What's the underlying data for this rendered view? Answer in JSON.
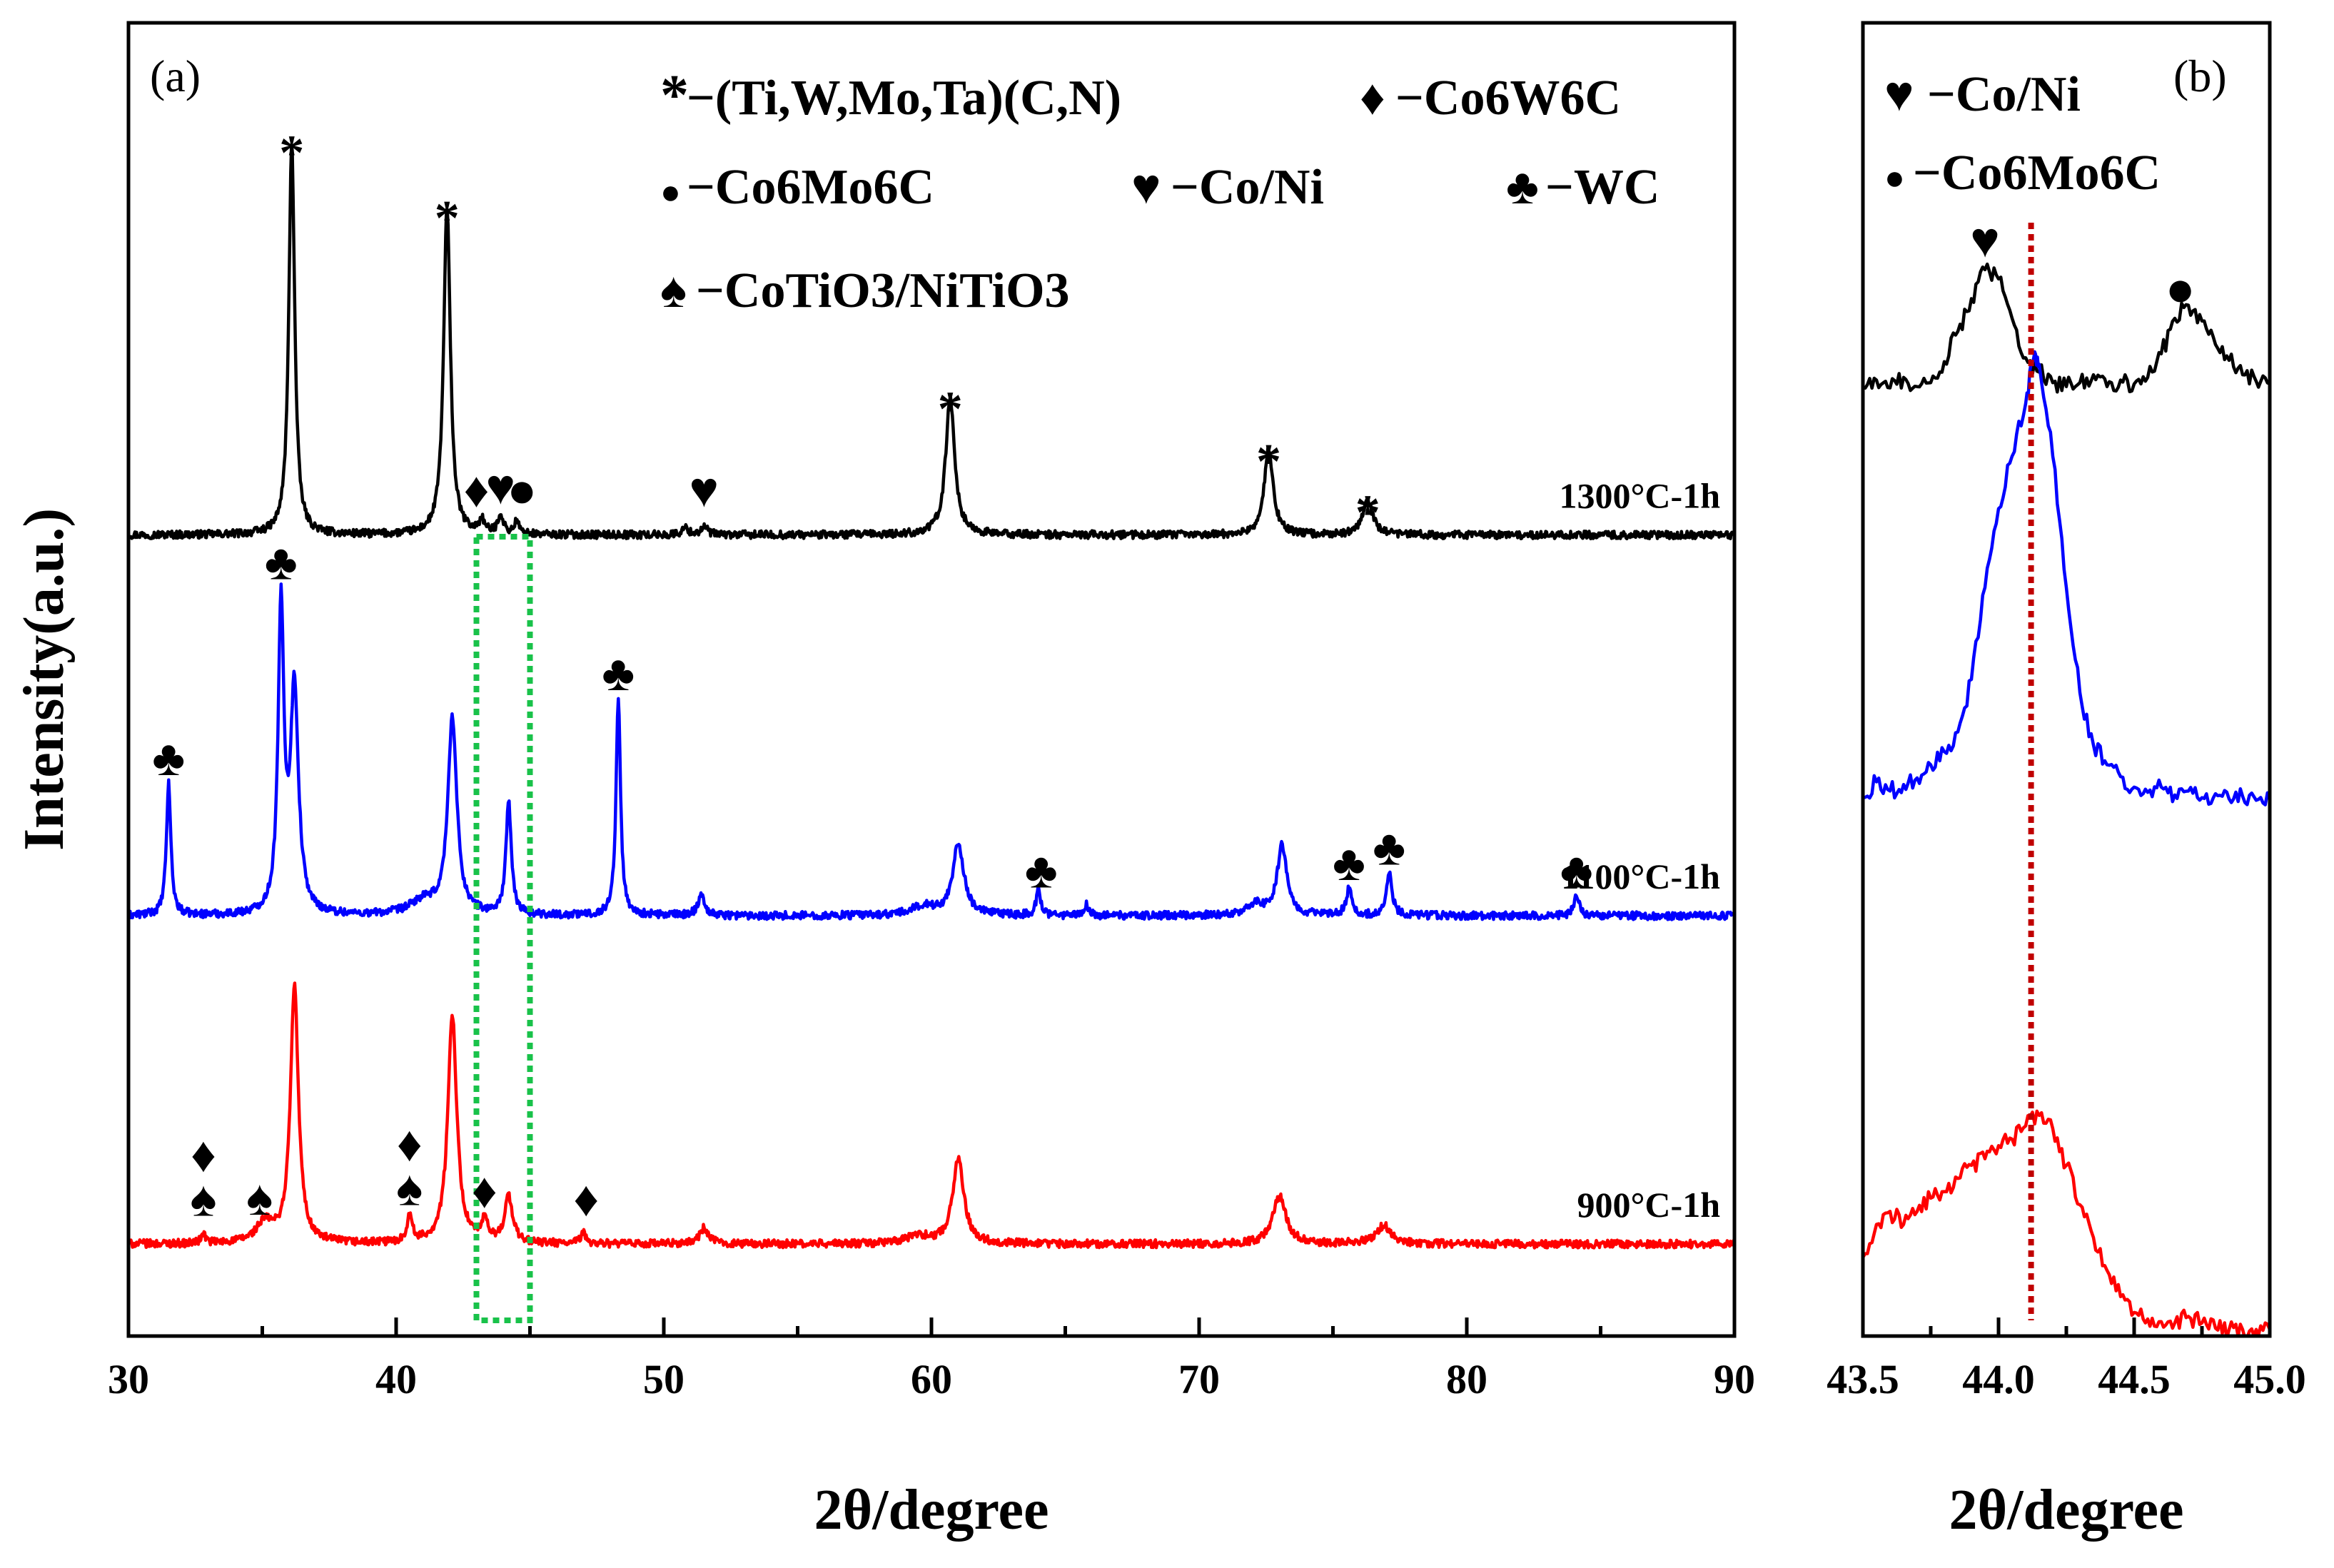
{
  "colors": {
    "s1300": "#000000",
    "s1100": "#0000ff",
    "s900": "#ff0000",
    "box": "#19c24a",
    "refline": "#c00000"
  },
  "chart_data": [
    {
      "type": "line",
      "panel_label": "(a)",
      "xlabel": "2θ/degree",
      "ylabel": "Intensity(a.u.)",
      "xlim": [
        30,
        90
      ],
      "xticks": [
        30,
        40,
        50,
        60,
        70,
        80,
        90
      ],
      "ylim": [
        0,
        100
      ],
      "yticks": "none",
      "legend": [
        {
          "symbol": "*",
          "symbol_name": "asterisk",
          "text": "−(Ti,W,Mo,Ta)(C,N)"
        },
        {
          "symbol": "♦",
          "symbol_name": "diamond",
          "text": "−Co6W6C"
        },
        {
          "symbol": "●",
          "symbol_name": "circle",
          "text": "−Co6Mo6C"
        },
        {
          "symbol": "♥",
          "symbol_name": "heart",
          "text": "−Co/Ni"
        },
        {
          "symbol": "♣",
          "symbol_name": "club",
          "text": "−WC"
        },
        {
          "symbol": "♠",
          "symbol_name": "spade",
          "text": "−CoTiO3/NiTiO3"
        }
      ],
      "highlight_region": {
        "x_range": [
          43,
          45
        ],
        "style": "green dotted box"
      },
      "series": [
        {
          "name": "1300°C-1h",
          "color_key": "s1300",
          "baseline": 61,
          "noise": 0.6,
          "peaks": [
            {
              "pos": 36.1,
              "height": 30,
              "width": 0.13
            },
            {
              "pos": 41.9,
              "height": 25,
              "width": 0.15
            },
            {
              "pos": 43.2,
              "height": 1.0,
              "width": 0.12
            },
            {
              "pos": 43.9,
              "height": 1.5,
              "width": 0.12
            },
            {
              "pos": 44.5,
              "height": 1.0,
              "width": 0.1
            },
            {
              "pos": 50.8,
              "height": 0.5,
              "width": 0.15
            },
            {
              "pos": 51.5,
              "height": 0.6,
              "width": 0.15
            },
            {
              "pos": 60.7,
              "height": 10.5,
              "width": 0.2
            },
            {
              "pos": 72.6,
              "height": 6.5,
              "width": 0.2
            },
            {
              "pos": 76.3,
              "height": 2.6,
              "width": 0.22
            }
          ],
          "annotations": [
            {
              "symbol": "*",
              "x": 36.1
            },
            {
              "symbol": "*",
              "x": 41.9
            },
            {
              "symbol": "♦",
              "x": 43.0
            },
            {
              "symbol": "♥",
              "x": 43.9
            },
            {
              "symbol": "●",
              "x": 44.7
            },
            {
              "symbol": "♥",
              "x": 51.5
            },
            {
              "symbol": "*",
              "x": 60.7
            },
            {
              "symbol": "*",
              "x": 72.6
            },
            {
              "symbol": "*",
              "x": 76.3
            }
          ]
        },
        {
          "name": "1100°C-1h",
          "color_key": "s1100",
          "baseline": 32,
          "noise": 0.6,
          "peaks": [
            {
              "pos": 31.5,
              "height": 10,
              "width": 0.1
            },
            {
              "pos": 35.7,
              "height": 23,
              "width": 0.13
            },
            {
              "pos": 36.2,
              "height": 17,
              "width": 0.18
            },
            {
              "pos": 42.1,
              "height": 15,
              "width": 0.2
            },
            {
              "pos": 41.0,
              "height": 1.0,
              "width": 0.6
            },
            {
              "pos": 44.2,
              "height": 8.5,
              "width": 0.12
            },
            {
              "pos": 48.3,
              "height": 16.5,
              "width": 0.1
            },
            {
              "pos": 51.4,
              "height": 1.6,
              "width": 0.15
            },
            {
              "pos": 61.0,
              "height": 5.5,
              "width": 0.25
            },
            {
              "pos": 59.7,
              "height": 0.7,
              "width": 0.5
            },
            {
              "pos": 64.0,
              "height": 2.0,
              "width": 0.1
            },
            {
              "pos": 65.8,
              "height": 0.8,
              "width": 0.1
            },
            {
              "pos": 73.1,
              "height": 5.3,
              "width": 0.22
            },
            {
              "pos": 72.1,
              "height": 0.8,
              "width": 0.4
            },
            {
              "pos": 75.6,
              "height": 2.0,
              "width": 0.13
            },
            {
              "pos": 77.1,
              "height": 3.2,
              "width": 0.13
            },
            {
              "pos": 84.1,
              "height": 1.5,
              "width": 0.12
            }
          ],
          "annotations": [
            {
              "symbol": "♣",
              "x": 31.5
            },
            {
              "symbol": "♣",
              "x": 35.7
            },
            {
              "symbol": "♣",
              "x": 48.3
            },
            {
              "symbol": "♣",
              "x": 64.1
            },
            {
              "symbol": "♣",
              "x": 75.6
            },
            {
              "symbol": "♣",
              "x": 77.1
            },
            {
              "symbol": "♣",
              "x": 84.1
            }
          ]
        },
        {
          "name": "900°C-1h",
          "color_key": "s900",
          "baseline": 7,
          "noise": 0.6,
          "peaks": [
            {
              "pos": 32.8,
              "height": 0.7,
              "width": 0.1
            },
            {
              "pos": 35.1,
              "height": 1.5,
              "width": 0.4
            },
            {
              "pos": 36.2,
              "height": 19.5,
              "width": 0.18
            },
            {
              "pos": 40.5,
              "height": 2.0,
              "width": 0.12
            },
            {
              "pos": 42.1,
              "height": 17.5,
              "width": 0.2
            },
            {
              "pos": 43.3,
              "height": 1.5,
              "width": 0.15
            },
            {
              "pos": 44.2,
              "height": 3.5,
              "width": 0.18
            },
            {
              "pos": 47.0,
              "height": 0.8,
              "width": 0.12
            },
            {
              "pos": 51.5,
              "height": 1.2,
              "width": 0.2
            },
            {
              "pos": 61.0,
              "height": 6.5,
              "width": 0.25
            },
            {
              "pos": 59.5,
              "height": 0.6,
              "width": 0.5
            },
            {
              "pos": 73.0,
              "height": 3.6,
              "width": 0.3
            },
            {
              "pos": 76.9,
              "height": 1.4,
              "width": 0.35
            }
          ],
          "annotations": [
            {
              "symbol": "♠",
              "x": 32.8
            },
            {
              "symbol": "♦",
              "x": 32.8
            },
            {
              "symbol": "♠",
              "x": 34.9
            },
            {
              "symbol": "♠",
              "x": 40.5
            },
            {
              "symbol": "♦",
              "x": 40.5
            },
            {
              "symbol": "♦",
              "x": 43.3
            },
            {
              "symbol": "♦",
              "x": 47.1
            }
          ]
        }
      ]
    },
    {
      "type": "line",
      "panel_label": "(b)",
      "xlabel": "2θ/degree",
      "xlim": [
        43.5,
        45.0
      ],
      "xticks": [
        "43.5",
        "44.0",
        "44.5",
        "45.0"
      ],
      "ylim": [
        0,
        100
      ],
      "yticks": "none",
      "legend": [
        {
          "symbol": "♥",
          "symbol_name": "heart",
          "text": "−Co/Ni"
        },
        {
          "symbol": "●",
          "symbol_name": "circle",
          "text": "−Co6Mo6C"
        }
      ],
      "reference_line": {
        "x": 44.12,
        "style": "dark red dotted vertical"
      },
      "series": [
        {
          "name": "1300°C-1h",
          "color_key": "s1300",
          "points": [
            [
              43.5,
              72.3
            ],
            [
              43.55,
              72.8
            ],
            [
              43.6,
              72.2
            ],
            [
              43.65,
              73.0
            ],
            [
              43.7,
              72.3
            ],
            [
              43.75,
              72.6
            ],
            [
              43.8,
              74.2
            ],
            [
              43.85,
              76.5
            ],
            [
              43.9,
              79.0
            ],
            [
              43.95,
              81.2
            ],
            [
              44.0,
              80.5
            ],
            [
              44.05,
              77.5
            ],
            [
              44.1,
              74.5
            ],
            [
              44.15,
              73.4
            ],
            [
              44.2,
              72.6
            ],
            [
              44.25,
              72.3
            ],
            [
              44.3,
              72.6
            ],
            [
              44.35,
              73.2
            ],
            [
              44.4,
              72.3
            ],
            [
              44.45,
              72.8
            ],
            [
              44.5,
              72.5
            ],
            [
              44.55,
              73.0
            ],
            [
              44.6,
              74.8
            ],
            [
              44.65,
              77.5
            ],
            [
              44.7,
              78.5
            ],
            [
              44.75,
              77.3
            ],
            [
              44.8,
              75.5
            ],
            [
              44.85,
              74.3
            ],
            [
              44.9,
              73.2
            ],
            [
              44.95,
              72.7
            ],
            [
              45.0,
              72.5
            ]
          ],
          "annotations": [
            {
              "symbol": "♥",
              "x": 43.95
            },
            {
              "symbol": "●",
              "x": 44.67
            }
          ]
        },
        {
          "name": "1100°C-1h",
          "color_key": "s1100",
          "points": [
            [
              43.5,
              41.0
            ],
            [
              43.55,
              42.2
            ],
            [
              43.6,
              41.5
            ],
            [
              43.65,
              42.0
            ],
            [
              43.7,
              42.5
            ],
            [
              43.75,
              43.5
            ],
            [
              43.8,
              44.5
            ],
            [
              43.85,
              46.0
            ],
            [
              43.9,
              50.0
            ],
            [
              43.95,
              57.0
            ],
            [
              44.0,
              63.0
            ],
            [
              44.05,
              67.0
            ],
            [
              44.1,
              71.0
            ],
            [
              44.13,
              74.5
            ],
            [
              44.15,
              74.0
            ],
            [
              44.2,
              67.0
            ],
            [
              44.25,
              57.0
            ],
            [
              44.3,
              49.0
            ],
            [
              44.35,
              45.0
            ],
            [
              44.4,
              43.5
            ],
            [
              44.45,
              42.6
            ],
            [
              44.5,
              41.8
            ],
            [
              44.55,
              41.4
            ],
            [
              44.6,
              41.8
            ],
            [
              44.65,
              41.2
            ],
            [
              44.7,
              41.5
            ],
            [
              44.75,
              41.0
            ],
            [
              44.8,
              41.3
            ],
            [
              44.85,
              40.9
            ],
            [
              44.9,
              41.1
            ],
            [
              44.95,
              40.8
            ],
            [
              45.0,
              41.0
            ]
          ]
        },
        {
          "name": "900°C-1h",
          "color_key": "s900",
          "points": [
            [
              43.5,
              6.0
            ],
            [
              43.55,
              8.5
            ],
            [
              43.6,
              9.5
            ],
            [
              43.65,
              8.5
            ],
            [
              43.7,
              9.5
            ],
            [
              43.75,
              10.5
            ],
            [
              43.8,
              11.0
            ],
            [
              43.85,
              12.0
            ],
            [
              43.9,
              13.0
            ],
            [
              43.95,
              13.5
            ],
            [
              44.0,
              14.5
            ],
            [
              44.05,
              15.0
            ],
            [
              44.1,
              16.0
            ],
            [
              44.15,
              16.8
            ],
            [
              44.2,
              15.8
            ],
            [
              44.25,
              13.0
            ],
            [
              44.3,
              10.0
            ],
            [
              44.35,
              7.5
            ],
            [
              44.4,
              5.0
            ],
            [
              44.45,
              3.0
            ],
            [
              44.5,
              1.8
            ],
            [
              44.55,
              1.3
            ],
            [
              44.6,
              1.1
            ],
            [
              44.65,
              1.0
            ],
            [
              44.7,
              1.5
            ],
            [
              44.75,
              1.0
            ],
            [
              44.8,
              0.6
            ],
            [
              44.85,
              0.5
            ],
            [
              44.9,
              0.5
            ],
            [
              44.95,
              0.5
            ],
            [
              45.0,
              0.5
            ]
          ]
        }
      ]
    }
  ]
}
